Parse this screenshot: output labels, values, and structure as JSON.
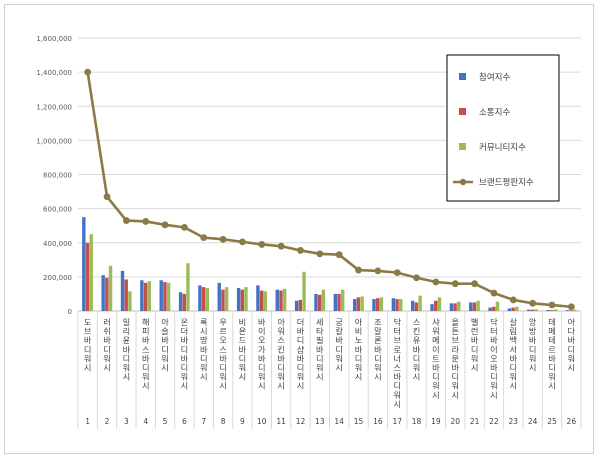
{
  "chart_data": {
    "type": "bar",
    "title": "",
    "xlabel": "",
    "ylabel": "",
    "ylim": [
      0,
      1600000
    ],
    "yticks": [
      0,
      200000,
      400000,
      600000,
      800000,
      1000000,
      1200000,
      1400000,
      1600000
    ],
    "ytick_labels": [
      "0",
      "200,000",
      "400,000",
      "600,000",
      "800,000",
      "1,000,000",
      "1,200,000",
      "1,400,000",
      "1,600,000"
    ],
    "grid": true,
    "legend_position": "top-right",
    "categories": [
      "1",
      "2",
      "3",
      "4",
      "5",
      "6",
      "7",
      "8",
      "9",
      "10",
      "11",
      "12",
      "13",
      "14",
      "15",
      "16",
      "17",
      "18",
      "19",
      "20",
      "21",
      "22",
      "23",
      "24",
      "25",
      "26"
    ],
    "brand_names": [
      "도브 바디워시",
      "러쉬 바디워시",
      "일리윤 바디워시",
      "해피바스 바디워시",
      "아슬 바디워시",
      "온더바디 바디워시",
      "록시땅 바디워시",
      "우르오스 바디워시",
      "비욘드 바디워시",
      "바이오가 바디워시",
      "아워스킨 바디워시",
      "더바디샵 바디워시",
      "세타필 바디워시",
      "궁칼 바디워시",
      "아비노 바디워시",
      "조말론 바디워시",
      "닥터브로너스 바디워시",
      "스킨유 바디워시",
      "샤워메이트 바디워시",
      "올튼브라운 바디워시",
      "밸런 바디워시",
      "닥터바이오 바디워시",
      "살림백서 바디워시",
      "앙방 바디워시",
      "데메테르 바디워시",
      "아다 바디워시"
    ],
    "series": [
      {
        "name": "참여지수",
        "color": "#4472c4",
        "kind": "bar",
        "values": [
          550000,
          210000,
          235000,
          180000,
          180000,
          110000,
          150000,
          165000,
          135000,
          150000,
          125000,
          60000,
          100000,
          100000,
          70000,
          70000,
          75000,
          60000,
          40000,
          45000,
          50000,
          20000,
          15000,
          8000,
          6000,
          5000
        ]
      },
      {
        "name": "소통지수",
        "color": "#c0504d",
        "kind": "bar",
        "values": [
          400000,
          195000,
          185000,
          165000,
          170000,
          100000,
          140000,
          125000,
          125000,
          120000,
          120000,
          65000,
          95000,
          100000,
          80000,
          75000,
          70000,
          50000,
          60000,
          45000,
          50000,
          25000,
          20000,
          8000,
          5000,
          4000
        ]
      },
      {
        "name": "커뮤니티지수",
        "color": "#9bbb59",
        "kind": "bar",
        "values": [
          450000,
          265000,
          115000,
          175000,
          165000,
          280000,
          135000,
          140000,
          140000,
          115000,
          130000,
          230000,
          125000,
          125000,
          85000,
          80000,
          70000,
          90000,
          80000,
          55000,
          60000,
          55000,
          25000,
          10000,
          10000,
          8000
        ]
      },
      {
        "name": "브랜드평판지수",
        "color": "#8c7a46",
        "kind": "line",
        "values": [
          1400000,
          670000,
          530000,
          525000,
          505000,
          490000,
          430000,
          420000,
          405000,
          390000,
          380000,
          355000,
          335000,
          330000,
          240000,
          235000,
          225000,
          195000,
          170000,
          160000,
          160000,
          105000,
          65000,
          45000,
          35000,
          25000
        ]
      }
    ]
  }
}
